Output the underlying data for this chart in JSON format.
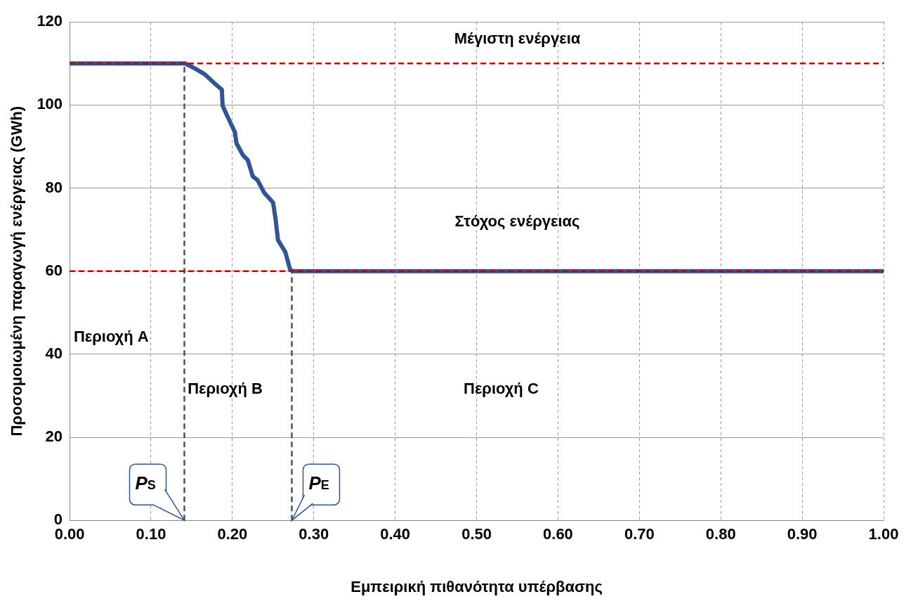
{
  "chart_data": {
    "type": "line",
    "xlabel": "Εμπειρική πιθανότητα υπέρβασης",
    "ylabel": "Προσομοιωμένη παραγωγή ενέργειας (GWh)",
    "xlim": [
      0,
      1
    ],
    "xticks": [
      {
        "value": 0,
        "label": "0.00"
      },
      {
        "value": 0.1,
        "label": "0.10"
      },
      {
        "value": 0.2,
        "label": "0.20"
      },
      {
        "value": 0.3,
        "label": "0.30"
      },
      {
        "value": 0.4,
        "label": "0.40"
      },
      {
        "value": 0.5,
        "label": "0.50"
      },
      {
        "value": 0.6,
        "label": "0.60"
      },
      {
        "value": 0.7,
        "label": "0.70"
      },
      {
        "value": 0.8,
        "label": "0.80"
      },
      {
        "value": 0.9,
        "label": "0.90"
      },
      {
        "value": 1,
        "label": "1.00"
      }
    ],
    "ylim": [
      0,
      120
    ],
    "yticks": [
      0,
      20,
      40,
      60,
      80,
      100,
      120
    ],
    "grid": true,
    "legend": false,
    "marker": "none",
    "series": [
      {
        "color": "#2f5597",
        "line_style": "solid",
        "x": [
          0,
          0.142,
          0.154,
          0.166,
          0.177,
          0.187,
          0.188,
          0.196,
          0.203,
          0.205,
          0.213,
          0.219,
          0.225,
          0.231,
          0.239,
          0.25,
          0.253,
          0.256,
          0.265,
          0.271,
          0.275,
          1
        ],
        "values": [
          110,
          110,
          108.8,
          107.4,
          105.4,
          103.7,
          99.8,
          96.4,
          93.5,
          90.8,
          87.9,
          86.7,
          82.8,
          81.9,
          78.9,
          76.5,
          72.6,
          67.5,
          64.6,
          60.3,
          60,
          60
        ]
      },
      {
        "color": "#44546a",
        "line_style": "dashed",
        "x": [
          0.141,
          0.141
        ],
        "values": [
          0,
          110
        ]
      },
      {
        "color": "#44546a",
        "line_style": "dashed",
        "x": [
          0.273,
          0.273
        ],
        "values": [
          0,
          60
        ]
      }
    ],
    "ref_lines": [
      {
        "axis": "y",
        "value": 110,
        "color": "#c00000",
        "line_style": "dashed",
        "label": "Μέγιστη ενέργεια"
      },
      {
        "axis": "y",
        "value": 60,
        "color": "#c00000",
        "line_style": "dashed",
        "label": "Στόχος ενέργειας"
      }
    ],
    "annotations": [
      "Περιοχή A",
      "Περιοχή B",
      "Περιοχή C",
      {
        "text": "P$_{S}$",
        "x": 0.141,
        "y": 0
      },
      {
        "text": "P$_{E}$",
        "x": 0.273,
        "y": 0
      }
    ]
  }
}
